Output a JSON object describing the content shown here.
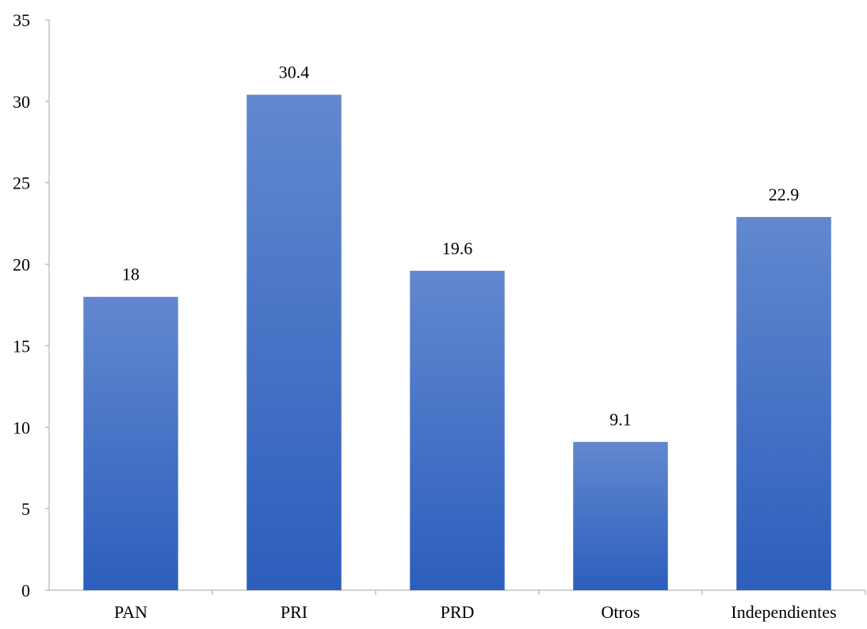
{
  "chart_data": {
    "type": "bar",
    "title": "",
    "xlabel": "",
    "ylabel": "",
    "categories": [
      "PAN",
      "PRI",
      "PRD",
      "Otros",
      "Independientes"
    ],
    "values": [
      18,
      30.4,
      19.6,
      9.1,
      22.9
    ],
    "data_labels": [
      "18",
      "30.4",
      "19.6",
      "9.1",
      "22.9"
    ],
    "ylim": [
      0,
      35
    ],
    "yticks": [
      0,
      5,
      10,
      15,
      20,
      25,
      30,
      35
    ],
    "grid": false,
    "legend": "none",
    "colors": {
      "bar_top": "#6288CF",
      "bar_bottom": "#2C5EBD",
      "axis": "#A6A6A6"
    }
  }
}
